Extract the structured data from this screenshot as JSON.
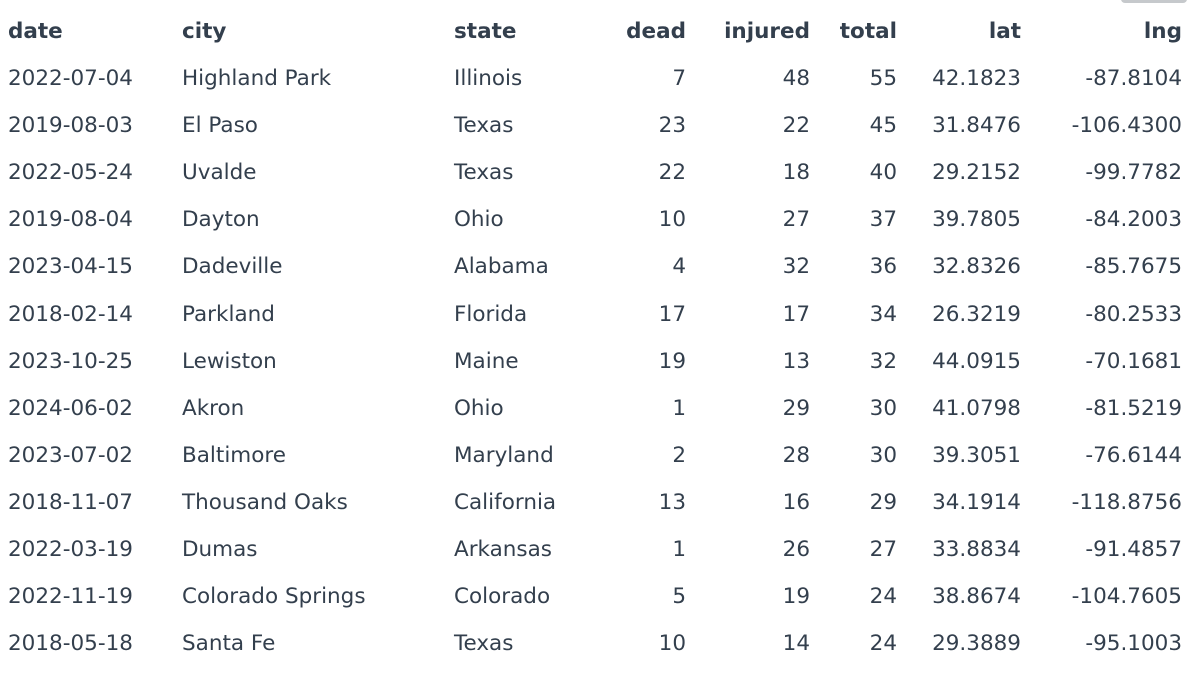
{
  "table": {
    "columns": [
      {
        "key": "date",
        "label": "date"
      },
      {
        "key": "city",
        "label": "city"
      },
      {
        "key": "state",
        "label": "state"
      },
      {
        "key": "dead",
        "label": "dead"
      },
      {
        "key": "injured",
        "label": "injured"
      },
      {
        "key": "total",
        "label": "total"
      },
      {
        "key": "lat",
        "label": "lat"
      },
      {
        "key": "lng",
        "label": "lng"
      }
    ],
    "rows": [
      [
        "2022-07-04",
        "Highland Park",
        "Illinois",
        "7",
        "48",
        "55",
        "42.1823",
        "-87.8104"
      ],
      [
        "2019-08-03",
        "El Paso",
        "Texas",
        "23",
        "22",
        "45",
        "31.8476",
        "-106.4300"
      ],
      [
        "2022-05-24",
        "Uvalde",
        "Texas",
        "22",
        "18",
        "40",
        "29.2152",
        "-99.7782"
      ],
      [
        "2019-08-04",
        "Dayton",
        "Ohio",
        "10",
        "27",
        "37",
        "39.7805",
        "-84.2003"
      ],
      [
        "2023-04-15",
        "Dadeville",
        "Alabama",
        "4",
        "32",
        "36",
        "32.8326",
        "-85.7675"
      ],
      [
        "2018-02-14",
        "Parkland",
        "Florida",
        "17",
        "17",
        "34",
        "26.3219",
        "-80.2533"
      ],
      [
        "2023-10-25",
        "Lewiston",
        "Maine",
        "19",
        "13",
        "32",
        "44.0915",
        "-70.1681"
      ],
      [
        "2024-06-02",
        "Akron",
        "Ohio",
        "1",
        "29",
        "30",
        "41.0798",
        "-81.5219"
      ],
      [
        "2023-07-02",
        "Baltimore",
        "Maryland",
        "2",
        "28",
        "30",
        "39.3051",
        "-76.6144"
      ],
      [
        "2018-11-07",
        "Thousand Oaks",
        "California",
        "13",
        "16",
        "29",
        "34.1914",
        "-118.8756"
      ],
      [
        "2022-03-19",
        "Dumas",
        "Arkansas",
        "1",
        "26",
        "27",
        "33.8834",
        "-91.4857"
      ],
      [
        "2022-11-19",
        "Colorado Springs",
        "Colorado",
        "5",
        "19",
        "24",
        "38.8674",
        "-104.7605"
      ],
      [
        "2018-05-18",
        "Santa Fe",
        "Texas",
        "10",
        "14",
        "24",
        "29.3889",
        "-95.1003"
      ]
    ]
  }
}
